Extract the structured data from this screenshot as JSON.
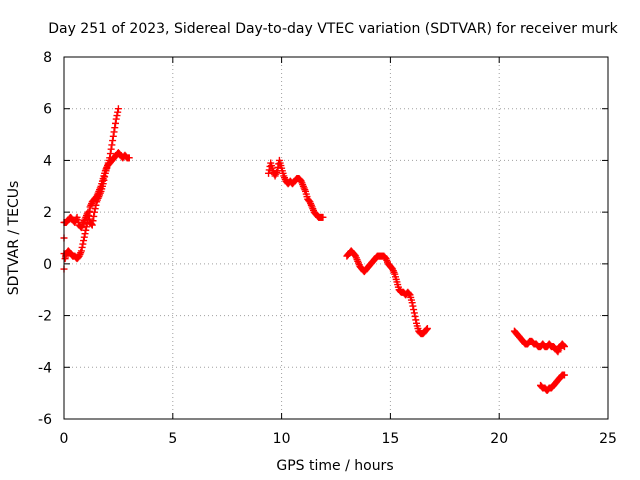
{
  "chart_data": {
    "type": "scatter",
    "title": "Day 251 of 2023, Sidereal Day-to-day VTEC variation (SDTVAR) for receiver murk",
    "xlabel": "GPS time / hours",
    "ylabel": "SDTVAR / TECUs",
    "xlim": [
      0,
      25
    ],
    "ylim": [
      -6,
      8
    ],
    "xticks": [
      0,
      5,
      10,
      15,
      20,
      25
    ],
    "yticks": [
      -6,
      -4,
      -2,
      0,
      2,
      4,
      6,
      8
    ],
    "grid": true,
    "marker": "+",
    "color": "#ff0000",
    "series": [
      {
        "name": "SDTVAR",
        "segments": [
          [
            [
              0.0,
              -0.2
            ],
            [
              0.0,
              1.6
            ],
            [
              0.1,
              1.6
            ],
            [
              0.2,
              1.7
            ],
            [
              0.3,
              1.8
            ],
            [
              0.4,
              1.7
            ],
            [
              0.5,
              1.6
            ],
            [
              0.6,
              1.8
            ],
            [
              0.7,
              1.5
            ],
            [
              0.8,
              1.4
            ],
            [
              0.9,
              1.6
            ],
            [
              1.0,
              1.8
            ],
            [
              1.1,
              2.0
            ],
            [
              1.2,
              1.6
            ],
            [
              1.3,
              1.5
            ],
            [
              1.4,
              2.0
            ],
            [
              1.5,
              2.4
            ],
            [
              1.6,
              2.6
            ],
            [
              1.7,
              2.8
            ],
            [
              1.8,
              3.1
            ],
            [
              1.9,
              3.5
            ],
            [
              2.0,
              3.8
            ],
            [
              2.1,
              4.1
            ],
            [
              2.2,
              4.6
            ],
            [
              2.3,
              5.1
            ],
            [
              2.4,
              5.6
            ],
            [
              2.5,
              6.0
            ]
          ],
          [
            [
              0.05,
              0.2
            ],
            [
              0.1,
              0.4
            ],
            [
              0.2,
              0.5
            ],
            [
              0.3,
              0.4
            ],
            [
              0.4,
              0.3
            ],
            [
              0.5,
              0.3
            ],
            [
              0.6,
              0.2
            ],
            [
              0.7,
              0.3
            ],
            [
              0.8,
              0.5
            ],
            [
              0.9,
              0.9
            ],
            [
              1.0,
              1.3
            ],
            [
              1.1,
              1.7
            ],
            [
              1.2,
              2.2
            ],
            [
              1.3,
              2.4
            ],
            [
              1.4,
              2.5
            ],
            [
              1.5,
              2.6
            ],
            [
              1.6,
              2.8
            ],
            [
              1.7,
              3.0
            ],
            [
              1.8,
              3.3
            ],
            [
              1.9,
              3.6
            ],
            [
              2.0,
              3.8
            ],
            [
              2.1,
              3.9
            ],
            [
              2.2,
              4.0
            ],
            [
              2.3,
              4.1
            ],
            [
              2.4,
              4.2
            ],
            [
              2.5,
              4.3
            ],
            [
              2.6,
              4.2
            ],
            [
              2.7,
              4.1
            ],
            [
              2.8,
              4.2
            ],
            [
              2.9,
              4.1
            ],
            [
              3.0,
              4.1
            ]
          ],
          [
            [
              9.4,
              3.5
            ],
            [
              9.5,
              3.9
            ],
            [
              9.6,
              3.6
            ],
            [
              9.7,
              3.4
            ],
            [
              9.8,
              3.6
            ],
            [
              9.9,
              4.0
            ],
            [
              10.0,
              3.7
            ],
            [
              10.1,
              3.4
            ],
            [
              10.2,
              3.2
            ],
            [
              10.3,
              3.1
            ],
            [
              10.4,
              3.2
            ],
            [
              10.5,
              3.1
            ],
            [
              10.6,
              3.2
            ],
            [
              10.7,
              3.3
            ],
            [
              10.8,
              3.3
            ],
            [
              10.9,
              3.2
            ],
            [
              11.0,
              3.0
            ],
            [
              11.1,
              2.8
            ],
            [
              11.2,
              2.5
            ],
            [
              11.3,
              2.4
            ],
            [
              11.4,
              2.2
            ],
            [
              11.5,
              2.0
            ],
            [
              11.6,
              1.9
            ],
            [
              11.7,
              1.8
            ],
            [
              11.8,
              1.8
            ],
            [
              11.9,
              1.8
            ]
          ],
          [
            [
              13.0,
              0.3
            ],
            [
              13.1,
              0.4
            ],
            [
              13.2,
              0.5
            ],
            [
              13.3,
              0.4
            ],
            [
              13.4,
              0.3
            ],
            [
              13.5,
              0.1
            ],
            [
              13.6,
              -0.1
            ],
            [
              13.7,
              -0.2
            ],
            [
              13.8,
              -0.3
            ],
            [
              13.9,
              -0.2
            ],
            [
              14.0,
              -0.1
            ],
            [
              14.1,
              0.0
            ],
            [
              14.2,
              0.1
            ],
            [
              14.3,
              0.2
            ],
            [
              14.4,
              0.3
            ],
            [
              14.5,
              0.3
            ],
            [
              14.6,
              0.3
            ],
            [
              14.7,
              0.3
            ],
            [
              14.8,
              0.2
            ],
            [
              14.9,
              0.0
            ],
            [
              15.0,
              -0.1
            ],
            [
              15.1,
              -0.2
            ],
            [
              15.2,
              -0.4
            ],
            [
              15.3,
              -0.7
            ],
            [
              15.4,
              -1.0
            ],
            [
              15.5,
              -1.1
            ],
            [
              15.6,
              -1.1
            ],
            [
              15.7,
              -1.2
            ],
            [
              15.8,
              -1.1
            ],
            [
              15.9,
              -1.2
            ],
            [
              16.0,
              -1.5
            ],
            [
              16.1,
              -1.9
            ],
            [
              16.2,
              -2.3
            ],
            [
              16.3,
              -2.6
            ],
            [
              16.4,
              -2.7
            ],
            [
              16.5,
              -2.7
            ],
            [
              16.6,
              -2.6
            ],
            [
              16.7,
              -2.5
            ]
          ],
          [
            [
              20.7,
              -2.6
            ],
            [
              20.8,
              -2.7
            ],
            [
              20.9,
              -2.8
            ],
            [
              21.0,
              -2.9
            ],
            [
              21.1,
              -3.0
            ],
            [
              21.2,
              -3.1
            ],
            [
              21.3,
              -3.1
            ],
            [
              21.4,
              -3.0
            ],
            [
              21.5,
              -3.0
            ],
            [
              21.6,
              -3.1
            ],
            [
              21.7,
              -3.1
            ],
            [
              21.8,
              -3.2
            ],
            [
              21.9,
              -3.2
            ],
            [
              22.0,
              -3.1
            ],
            [
              22.1,
              -3.2
            ],
            [
              22.2,
              -3.2
            ],
            [
              22.3,
              -3.1
            ],
            [
              22.4,
              -3.2
            ],
            [
              22.5,
              -3.2
            ],
            [
              22.6,
              -3.3
            ],
            [
              22.7,
              -3.4
            ],
            [
              22.8,
              -3.2
            ],
            [
              22.9,
              -3.1
            ],
            [
              23.0,
              -3.2
            ]
          ],
          [
            [
              21.9,
              -4.7
            ],
            [
              22.0,
              -4.8
            ],
            [
              22.1,
              -4.8
            ],
            [
              22.2,
              -4.9
            ],
            [
              22.3,
              -4.8
            ],
            [
              22.4,
              -4.8
            ],
            [
              22.5,
              -4.7
            ],
            [
              22.6,
              -4.6
            ],
            [
              22.7,
              -4.5
            ],
            [
              22.8,
              -4.4
            ],
            [
              22.9,
              -4.3
            ],
            [
              23.0,
              -4.3
            ]
          ]
        ]
      }
    ]
  }
}
